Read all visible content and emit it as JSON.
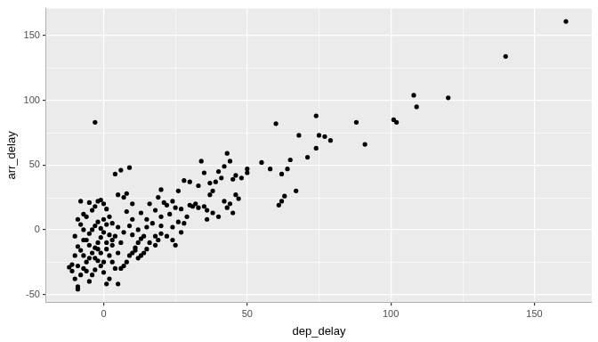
{
  "chart_data": {
    "type": "scatter",
    "x_label": "dep_delay",
    "y_label": "arr_delay",
    "x": [
      -3,
      161,
      140,
      108,
      120,
      109,
      101,
      102,
      88,
      91,
      60,
      74,
      75,
      77,
      79,
      68,
      71,
      74,
      65,
      64,
      58,
      62,
      55,
      50,
      50,
      48,
      67,
      63,
      61,
      62,
      43,
      44,
      46,
      45,
      42,
      40,
      41,
      39,
      38,
      37,
      34,
      35,
      33,
      32,
      31,
      30,
      36,
      37,
      38,
      42,
      44,
      43,
      45,
      46,
      47,
      40,
      30,
      28,
      26,
      25,
      24,
      23,
      22,
      21,
      20,
      19,
      18,
      17,
      20,
      22,
      24,
      26,
      28,
      29,
      27,
      33,
      35,
      36,
      16,
      15,
      13,
      14,
      12,
      11,
      10,
      9,
      4,
      6,
      8,
      7,
      5,
      8,
      9,
      10,
      11,
      12,
      13,
      6,
      5,
      4,
      3,
      2,
      1,
      0,
      -1,
      -2,
      -3,
      -4,
      -5,
      -6,
      -7,
      -8,
      -9,
      -10,
      -11,
      -10,
      -9,
      -10,
      -9,
      -8,
      -7,
      -6,
      -5,
      -4,
      -3,
      -2,
      -1,
      0,
      1,
      2,
      3,
      4,
      2,
      1,
      0,
      -1,
      -2,
      -3,
      -4,
      -5,
      -6,
      -7,
      -8,
      -9,
      -6,
      -5,
      -4,
      -3,
      -2,
      -1,
      0,
      1,
      2,
      3,
      -7,
      -8,
      -11,
      -12,
      6,
      7,
      8,
      9,
      10,
      12,
      14,
      15,
      16,
      18,
      19,
      20,
      7,
      5,
      3,
      1,
      -1,
      -2,
      -3,
      0,
      -5,
      -7,
      20,
      24,
      27,
      18,
      10,
      15,
      13,
      25,
      -9,
      5
    ],
    "values": [
      83,
      161,
      134,
      104,
      102,
      95,
      85,
      83,
      83,
      66,
      82,
      88,
      73,
      72,
      69,
      73,
      56,
      63,
      54,
      47,
      47,
      43,
      52,
      47,
      44,
      40,
      30,
      26,
      19,
      22,
      59,
      53,
      42,
      39,
      49,
      45,
      40,
      37,
      30,
      27,
      53,
      44,
      34,
      20,
      18,
      19,
      15,
      36,
      13,
      22,
      20,
      17,
      13,
      27,
      24,
      10,
      37,
      38,
      30,
      17,
      22,
      12,
      19,
      21,
      31,
      25,
      15,
      5,
      -3,
      -5,
      -8,
      6,
      5,
      10,
      16,
      17,
      18,
      8,
      20,
      8,
      13,
      -5,
      -10,
      -14,
      20,
      48,
      43,
      46,
      28,
      25,
      27,
      14,
      3,
      -4,
      -16,
      0,
      -7,
      -10,
      -18,
      -5,
      5,
      10,
      16,
      20,
      23,
      22,
      18,
      15,
      21,
      10,
      12,
      22,
      8,
      -5,
      -27,
      -20,
      -28,
      -38,
      -44,
      -35,
      -30,
      -25,
      -22,
      -18,
      -14,
      -10,
      -6,
      -2,
      -15,
      -20,
      -25,
      -30,
      -38,
      -42,
      -33,
      -28,
      -24,
      -31,
      -35,
      -40,
      -32,
      -20,
      -16,
      -13,
      -8,
      -3,
      0,
      3,
      6,
      1,
      8,
      4,
      -4,
      -8,
      0,
      4,
      -32,
      -29,
      -30,
      -28,
      -25,
      -20,
      -18,
      -22,
      -18,
      -15,
      -10,
      -5,
      -8,
      3,
      -2,
      2,
      -12,
      -10,
      -18,
      -15,
      -22,
      -25,
      -12,
      -8,
      10,
      2,
      -2,
      -12,
      8,
      2,
      -20,
      -12,
      -46,
      -42
    ],
    "xlim": [
      -20,
      170
    ],
    "ylim": [
      -56,
      171
    ],
    "xticks": [
      0,
      50,
      100,
      150
    ],
    "yticks": [
      -50,
      0,
      50,
      100,
      150
    ],
    "grid": true,
    "color": "#000000",
    "marker": "circle"
  }
}
